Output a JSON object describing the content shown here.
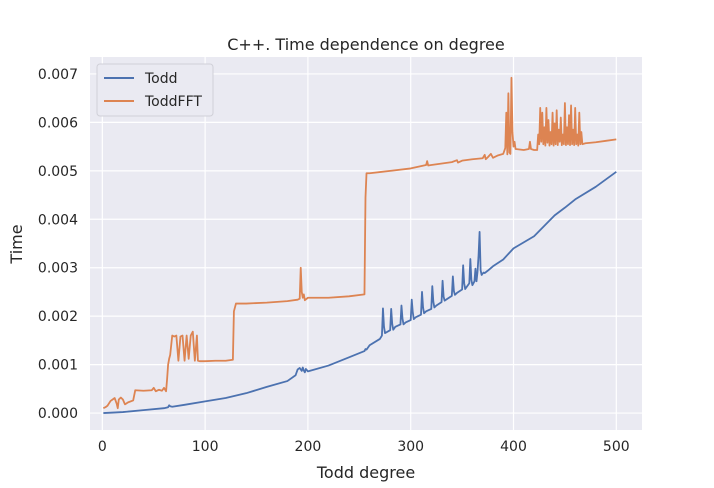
{
  "chart_data": {
    "type": "line",
    "title": "C++. Time dependence on degree",
    "xlabel": "Todd degree",
    "ylabel": "Time",
    "xlim": [
      -12,
      525
    ],
    "ylim": [
      -0.00035,
      0.00735
    ],
    "x_ticks": [
      0,
      100,
      200,
      300,
      400,
      500
    ],
    "y_ticks": [
      0.0,
      0.001,
      0.002,
      0.003,
      0.004,
      0.005,
      0.006,
      0.007
    ],
    "y_tick_labels": [
      "0.000",
      "0.001",
      "0.002",
      "0.003",
      "0.004",
      "0.005",
      "0.006",
      "0.007"
    ],
    "grid": true,
    "legend_position": "top-left",
    "background_color": "#eaeaf2",
    "grid_color": "#ffffff",
    "series": [
      {
        "name": "Todd",
        "color": "#4c72b0",
        "x": [
          1,
          20,
          40,
          60,
          64,
          65,
          66,
          68,
          80,
          100,
          120,
          140,
          160,
          180,
          188,
          190,
          192,
          194,
          195,
          196,
          197,
          198,
          200,
          220,
          240,
          255,
          256,
          257,
          260,
          270,
          272,
          273,
          274,
          275,
          280,
          281,
          282,
          283,
          285,
          290,
          291,
          292,
          293,
          295,
          300,
          301,
          302,
          303,
          305,
          310,
          311,
          312,
          313,
          315,
          320,
          321,
          322,
          323,
          325,
          330,
          331,
          332,
          333,
          335,
          340,
          341,
          342,
          343,
          345,
          350,
          351,
          352,
          353,
          355,
          357,
          358,
          359,
          360,
          362,
          363,
          364,
          365,
          366,
          367,
          368,
          369,
          370,
          371,
          372,
          375,
          380,
          390,
          400,
          420,
          440,
          450,
          460,
          480,
          500
        ],
        "y": [
          0.0,
          2e-05,
          6e-05,
          0.0001,
          0.00012,
          0.00016,
          0.00014,
          0.00013,
          0.00017,
          0.00024,
          0.00031,
          0.00041,
          0.00054,
          0.00066,
          0.00078,
          0.0009,
          0.00093,
          0.00087,
          0.00094,
          0.00088,
          0.00084,
          0.00091,
          0.00086,
          0.00098,
          0.00115,
          0.00128,
          0.00132,
          0.00131,
          0.0014,
          0.00153,
          0.0016,
          0.00216,
          0.00178,
          0.00165,
          0.00171,
          0.00215,
          0.00184,
          0.00172,
          0.00178,
          0.00183,
          0.00222,
          0.00195,
          0.00183,
          0.00187,
          0.00192,
          0.00234,
          0.00208,
          0.00194,
          0.00198,
          0.00203,
          0.0025,
          0.00218,
          0.00206,
          0.0021,
          0.00215,
          0.00262,
          0.0023,
          0.00218,
          0.00222,
          0.00229,
          0.00273,
          0.0024,
          0.00232,
          0.00235,
          0.00242,
          0.00282,
          0.00252,
          0.00244,
          0.00248,
          0.00255,
          0.00305,
          0.00268,
          0.00256,
          0.00262,
          0.00268,
          0.00318,
          0.00275,
          0.00264,
          0.00272,
          0.00298,
          0.00272,
          0.00292,
          0.00325,
          0.00374,
          0.00295,
          0.00285,
          0.00288,
          0.0029,
          0.00289,
          0.00294,
          0.00303,
          0.00317,
          0.0034,
          0.00365,
          0.00408,
          0.00424,
          0.00441,
          0.00467,
          0.00498
        ]
      },
      {
        "name": "ToddFFT",
        "color": "#dd8452",
        "x": [
          1,
          3,
          5,
          8,
          10,
          12,
          14,
          15,
          16,
          18,
          20,
          22,
          25,
          30,
          32,
          40,
          48,
          50,
          52,
          55,
          58,
          60,
          62,
          63,
          64,
          65,
          66,
          68,
          70,
          72,
          74,
          76,
          78,
          80,
          82,
          84,
          86,
          88,
          90,
          92,
          93,
          95,
          100,
          110,
          120,
          127,
          128,
          130,
          140,
          160,
          180,
          190,
          192,
          193,
          194,
          195,
          196,
          197,
          200,
          220,
          240,
          255,
          256,
          257,
          260,
          280,
          300,
          315,
          316,
          317,
          320,
          340,
          345,
          346,
          350,
          360,
          370,
          372,
          373,
          375,
          378,
          380,
          385,
          390,
          392,
          393,
          394,
          395,
          396,
          397,
          398,
          399,
          400,
          401,
          402,
          410,
          415,
          416,
          417,
          420,
          423,
          424,
          425,
          426,
          427,
          428,
          429,
          430,
          431,
          432,
          433,
          434,
          435,
          436,
          437,
          438,
          439,
          440,
          441,
          442,
          443,
          444,
          445,
          446,
          447,
          448,
          449,
          450,
          451,
          452,
          453,
          454,
          455,
          456,
          457,
          458,
          459,
          460,
          461,
          462,
          463,
          464,
          465,
          466,
          467,
          470,
          480,
          490,
          500
        ],
        "y": [
          0.0001,
          0.00012,
          0.00015,
          0.00025,
          0.00028,
          0.00031,
          0.00019,
          0.0001,
          0.00028,
          0.00032,
          0.00028,
          0.00018,
          0.00022,
          0.00026,
          0.00047,
          0.00046,
          0.00047,
          0.00052,
          0.00045,
          0.00048,
          0.00046,
          0.00052,
          0.00045,
          0.0007,
          0.001,
          0.00112,
          0.0012,
          0.0016,
          0.00158,
          0.0016,
          0.00108,
          0.00158,
          0.0016,
          0.00108,
          0.0016,
          0.00112,
          0.0016,
          0.00168,
          0.00108,
          0.0016,
          0.00108,
          0.00107,
          0.00107,
          0.00108,
          0.00108,
          0.0011,
          0.0021,
          0.00226,
          0.00226,
          0.00228,
          0.00231,
          0.00234,
          0.00236,
          0.003,
          0.0025,
          0.00238,
          0.00245,
          0.00233,
          0.00238,
          0.00238,
          0.00241,
          0.00245,
          0.00445,
          0.00495,
          0.00495,
          0.005,
          0.00505,
          0.00512,
          0.0052,
          0.00511,
          0.00512,
          0.00518,
          0.00522,
          0.00517,
          0.00521,
          0.00524,
          0.00526,
          0.00533,
          0.00524,
          0.00528,
          0.00535,
          0.00527,
          0.00532,
          0.00535,
          0.00547,
          0.0062,
          0.00534,
          0.0066,
          0.00538,
          0.00535,
          0.00692,
          0.0058,
          0.0055,
          0.0056,
          0.00545,
          0.00543,
          0.00545,
          0.0056,
          0.00545,
          0.00543,
          0.00543,
          0.00575,
          0.00555,
          0.0063,
          0.0056,
          0.0062,
          0.00555,
          0.0059,
          0.00552,
          0.0063,
          0.00558,
          0.00605,
          0.00552,
          0.0058,
          0.00555,
          0.0062,
          0.00552,
          0.00598,
          0.00555,
          0.00625,
          0.00553,
          0.00585,
          0.0056,
          0.0061,
          0.00553,
          0.00575,
          0.00555,
          0.0064,
          0.00553,
          0.0059,
          0.00555,
          0.00615,
          0.00553,
          0.00635,
          0.00555,
          0.00585,
          0.00553,
          0.0063,
          0.00555,
          0.00575,
          0.00552,
          0.0062,
          0.00555,
          0.0058,
          0.00555,
          0.00557,
          0.00559,
          0.00562,
          0.00565
        ]
      }
    ]
  }
}
